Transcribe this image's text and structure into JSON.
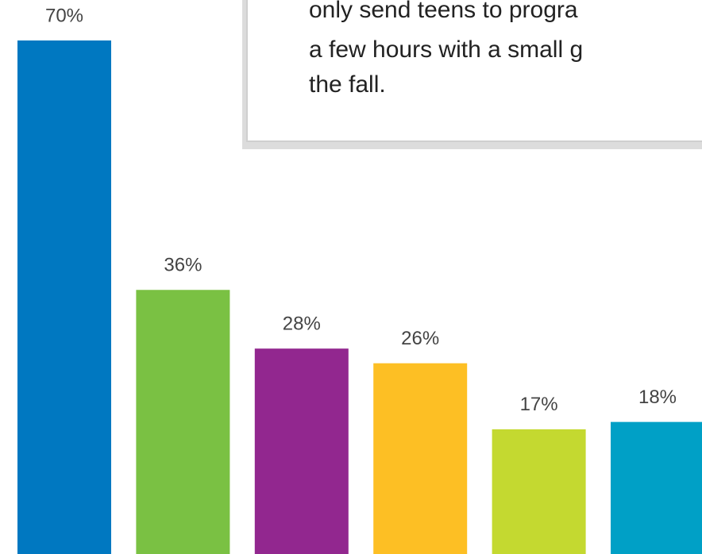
{
  "chart_data": {
    "type": "bar",
    "annotation": [
      "only send teens to progra",
      "a few hours with a small g",
      "the fall."
    ],
    "categories": [
      null,
      null,
      null,
      null,
      null,
      null
    ],
    "values": [
      70,
      36,
      28,
      26,
      17,
      18
    ],
    "value_labels": [
      "70%",
      "36%",
      "28%",
      "26%",
      "17%",
      "18%"
    ],
    "colors": [
      "#0078c1",
      "#7ac143",
      "#92278f",
      "#fdbf24",
      "#c4d930",
      "#00a0c6"
    ]
  }
}
